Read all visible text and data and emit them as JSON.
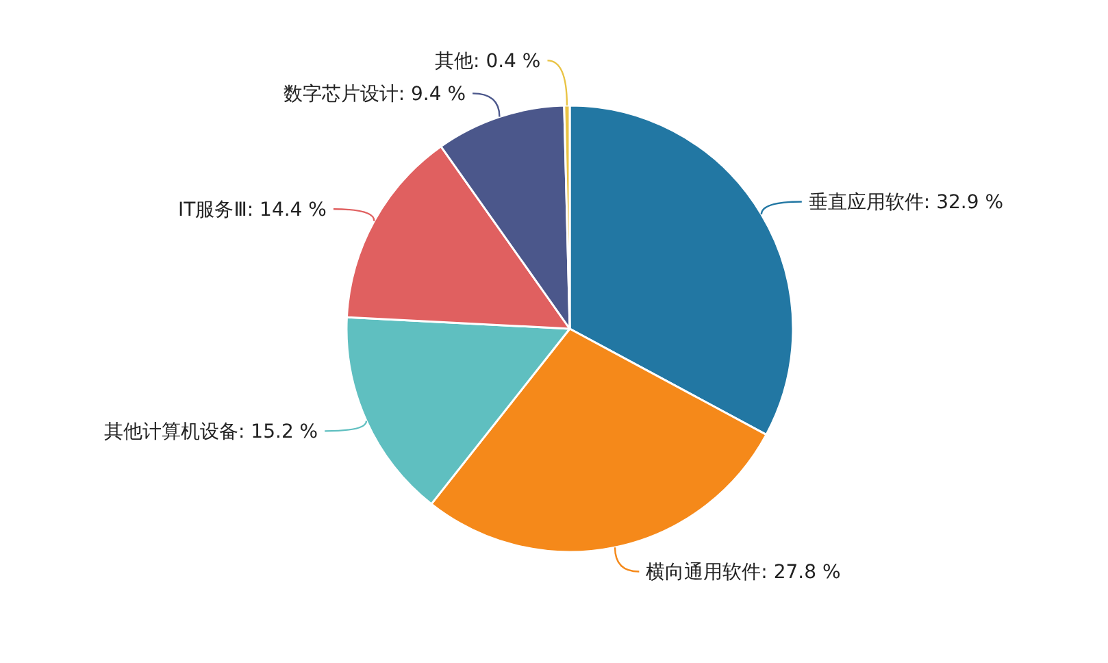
{
  "chart_data": {
    "type": "pie",
    "categories": [
      "垂直应用软件",
      "横向通用软件",
      "其他计算机设备",
      "IT服务Ⅲ",
      "数字芯片设计",
      "其他"
    ],
    "values": [
      32.9,
      27.8,
      15.2,
      14.4,
      9.4,
      0.4
    ],
    "colors": [
      "#2277a3",
      "#f5891a",
      "#5fbfc0",
      "#e06060",
      "#4b578b",
      "#e9c344"
    ],
    "value_labels": [
      ": 32.9 %",
      ": 27.8 %",
      ": 15.2 %",
      ": 14.4 %",
      ": 9.4 %",
      ": 0.4 %"
    ]
  }
}
